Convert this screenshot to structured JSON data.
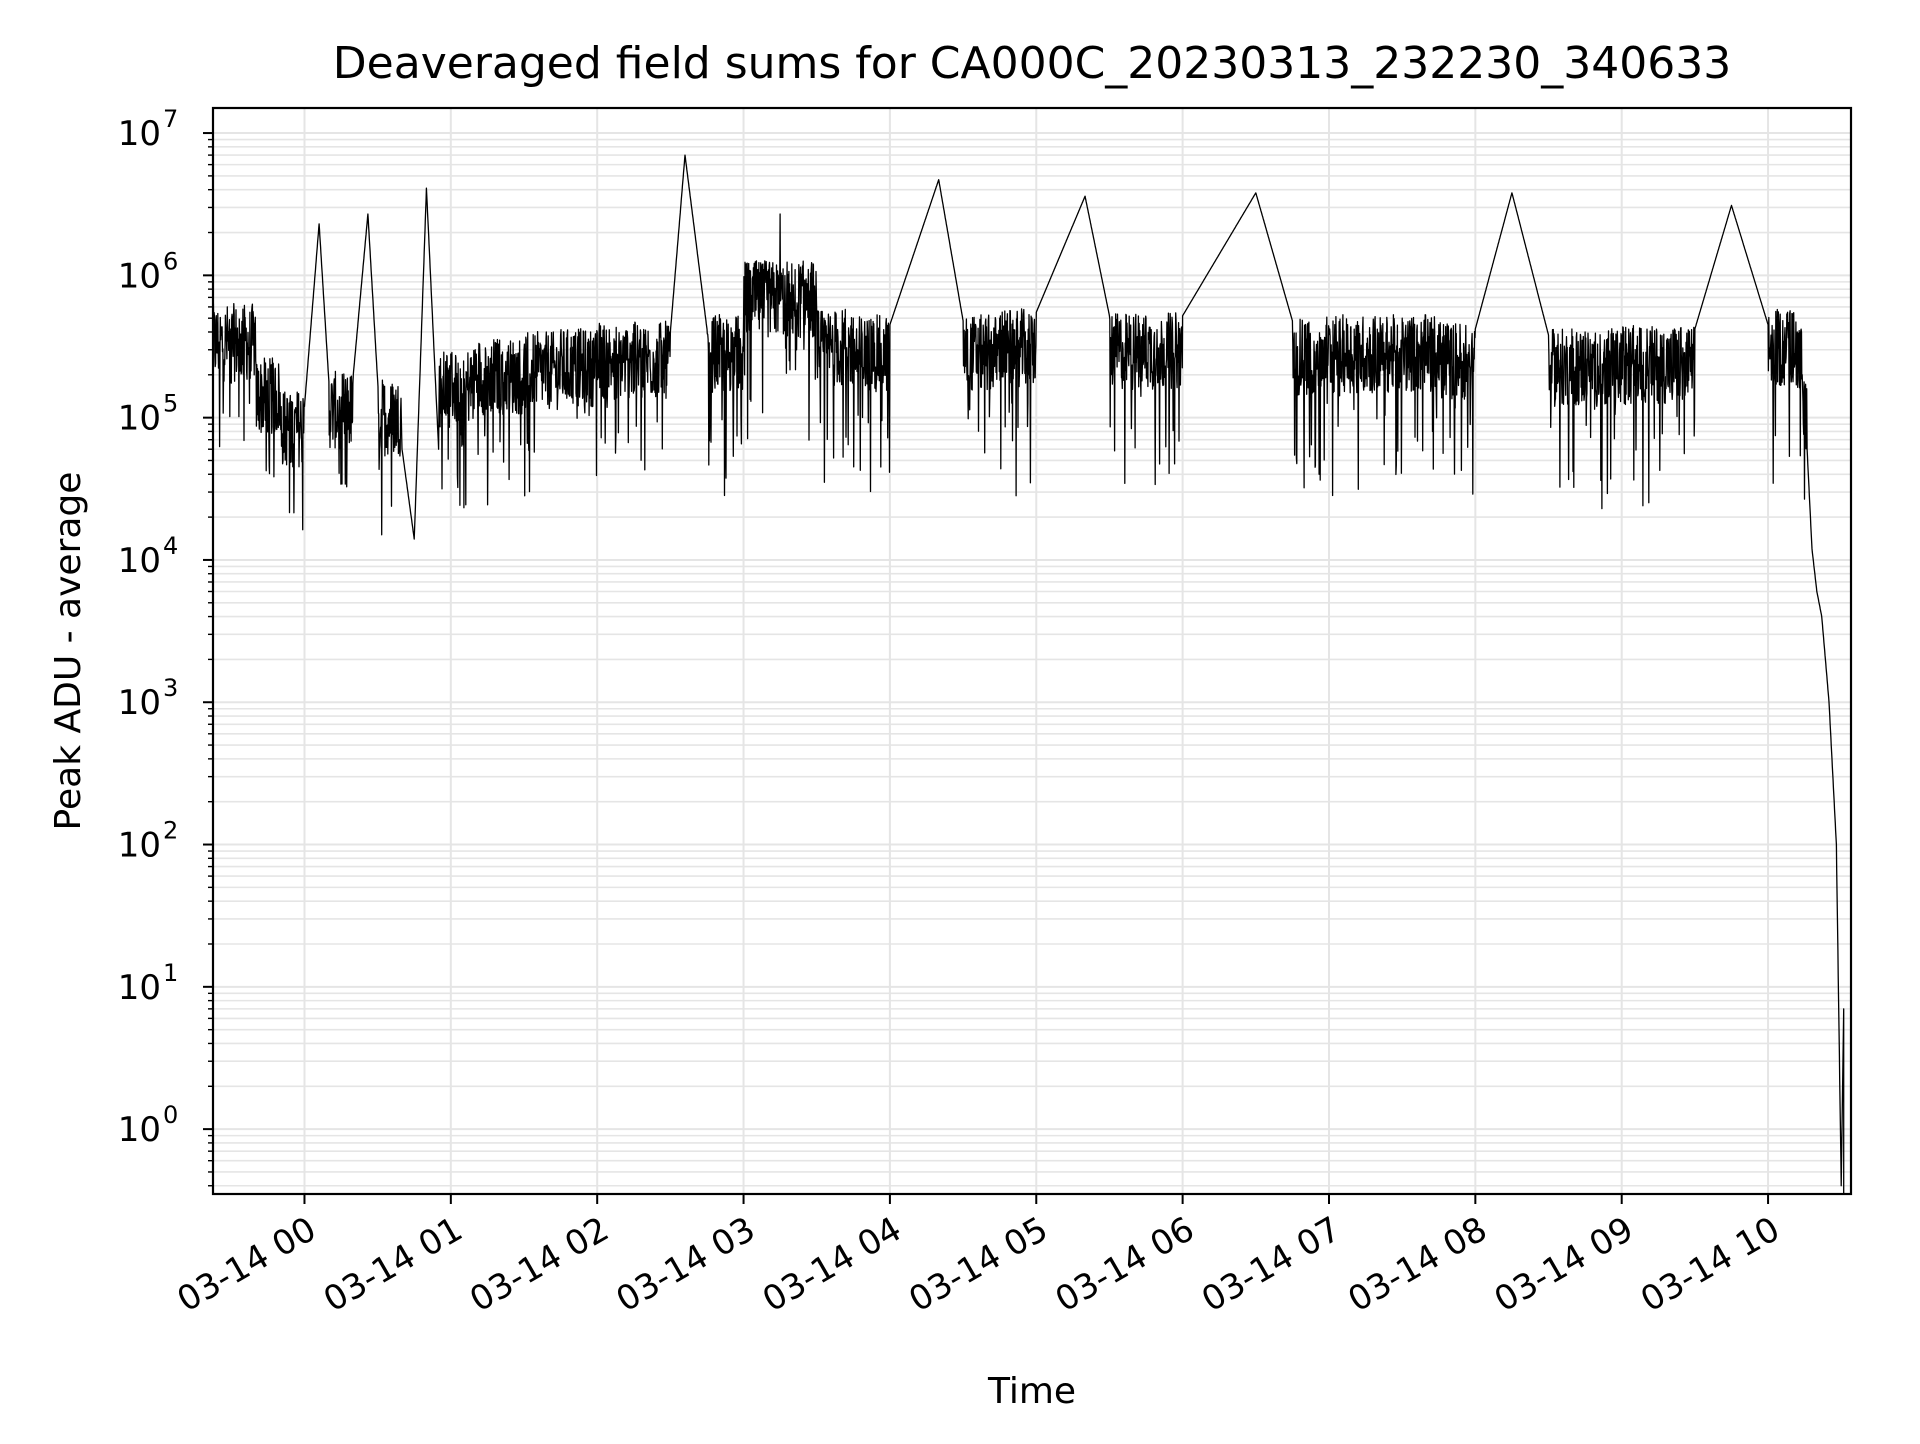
{
  "chart_data": {
    "type": "line",
    "title": "Deaveraged field sums for CA000C_20230313_232230_340633",
    "xlabel": "Time",
    "ylabel": "Peak ADU - average",
    "x_is_time": true,
    "x_tick_labels": [
      "03-14 00",
      "03-14 01",
      "03-14 02",
      "03-14 03",
      "03-14 04",
      "03-14 05",
      "03-14 06",
      "03-14 07",
      "03-14 08",
      "03-14 09",
      "03-14 10"
    ],
    "xlim": [
      "2023-03-13 23:22:30",
      "2023-03-14 10:34:00"
    ],
    "y_scale": "log",
    "ylim": [
      0.35,
      15000000
    ],
    "y_tick_labels": [
      {
        "base": "10",
        "exp": "0",
        "value": 1
      },
      {
        "base": "10",
        "exp": "1",
        "value": 10
      },
      {
        "base": "10",
        "exp": "2",
        "value": 100
      },
      {
        "base": "10",
        "exp": "3",
        "value": 1000
      },
      {
        "base": "10",
        "exp": "4",
        "value": 10000
      },
      {
        "base": "10",
        "exp": "5",
        "value": 100000
      },
      {
        "base": "10",
        "exp": "6",
        "value": 1000000
      },
      {
        "base": "10",
        "exp": "7",
        "value": 10000000
      }
    ],
    "grid": true,
    "line_color": "#000000",
    "grid_color": "#e5e5e5",
    "series": [
      {
        "x": [
          "2023-03-13 23:22:30",
          "2023-03-13 23:30:00",
          "2023-03-13 23:40:00",
          "2023-03-13 23:50:00",
          "2023-03-14 00:00:00",
          "2023-03-14 00:06:00",
          "2023-03-14 00:10:00",
          "2023-03-14 00:20:00",
          "2023-03-14 00:26:00",
          "2023-03-14 00:30:00",
          "2023-03-14 00:40:00",
          "2023-03-14 00:45:00",
          "2023-03-14 00:50:00",
          "2023-03-14 00:55:00",
          "2023-03-14 01:00:00",
          "2023-03-14 01:10:00",
          "2023-03-14 01:20:00",
          "2023-03-14 01:30:00",
          "2023-03-14 01:45:00",
          "2023-03-14 02:00:00",
          "2023-03-14 02:15:00",
          "2023-03-14 02:30:00",
          "2023-03-14 02:36:00",
          "2023-03-14 02:45:00",
          "2023-03-14 03:00:00",
          "2023-03-14 03:15:00",
          "2023-03-14 03:30:00",
          "2023-03-14 03:45:00",
          "2023-03-14 04:00:00",
          "2023-03-14 04:20:00",
          "2023-03-14 04:30:00",
          "2023-03-14 04:45:00",
          "2023-03-14 05:00:00",
          "2023-03-14 05:20:00",
          "2023-03-14 05:30:00",
          "2023-03-14 05:45:00",
          "2023-03-14 06:00:00",
          "2023-03-14 06:30:00",
          "2023-03-14 06:45:00",
          "2023-03-14 07:00:00",
          "2023-03-14 07:30:00",
          "2023-03-14 07:45:00",
          "2023-03-14 08:00:00",
          "2023-03-14 08:15:00",
          "2023-03-14 08:30:00",
          "2023-03-14 08:45:00",
          "2023-03-14 09:00:00",
          "2023-03-14 09:30:00",
          "2023-03-14 09:45:00",
          "2023-03-14 10:00:00",
          "2023-03-14 10:08:00",
          "2023-03-14 10:12:00",
          "2023-03-14 10:14:00",
          "2023-03-14 10:16:00",
          "2023-03-14 10:18:00",
          "2023-03-14 10:20:00",
          "2023-03-14 10:22:00",
          "2023-03-14 10:25:00",
          "2023-03-14 10:28:00",
          "2023-03-14 10:30:00"
        ],
        "y": [
          450000,
          600000,
          250000,
          150000,
          120000,
          2300000,
          180000,
          200000,
          2700000,
          180000,
          60000,
          14000,
          4100000,
          60000,
          280000,
          300000,
          350000,
          300000,
          380000,
          400000,
          450000,
          400000,
          7000000,
          420000,
          500000,
          2700000,
          550000,
          500000,
          450000,
          4700000,
          480000,
          500000,
          550000,
          3600000,
          520000,
          500000,
          520000,
          3800000,
          480000,
          420000,
          500000,
          450000,
          420000,
          3800000,
          380000,
          400000,
          380000,
          420000,
          3100000,
          450000,
          550000,
          400000,
          200000,
          60000,
          12000,
          6000,
          4000,
          1000,
          100,
          0.4
        ]
      }
    ]
  }
}
